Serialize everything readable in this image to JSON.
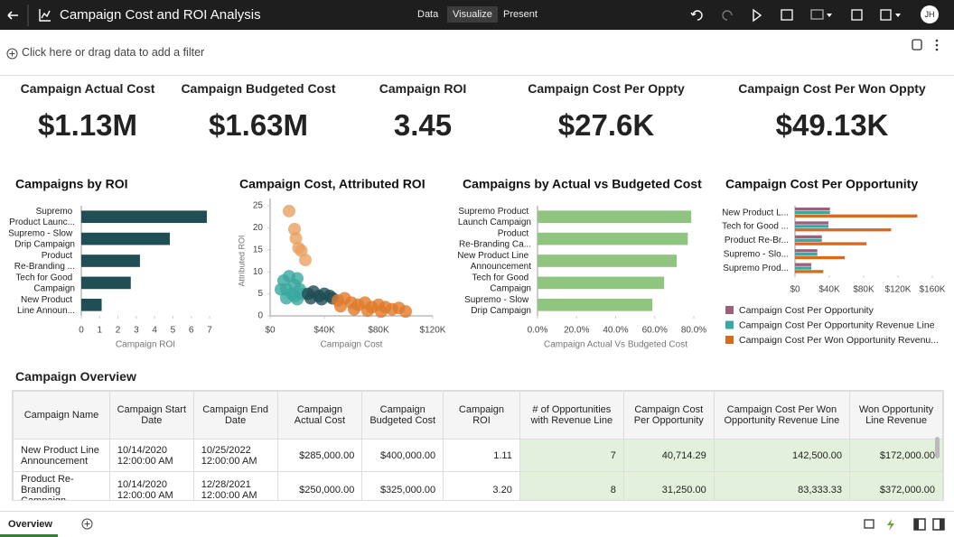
{
  "header": {
    "title": "Campaign Cost and ROI Analysis",
    "tabs": [
      "Data",
      "Visualize",
      "Present"
    ],
    "avatar": "JH"
  },
  "filter_bar": {
    "placeholder": "Click here or drag data to add a filter"
  },
  "kpis": [
    {
      "title": "Campaign Actual Cost",
      "value": "$1.13M"
    },
    {
      "title": "Campaign Budgeted Cost",
      "value": "$1.63M"
    },
    {
      "title": "Campaign ROI",
      "value": "3.45"
    },
    {
      "title": "Campaign Cost Per Oppty",
      "value": "$27.6K"
    },
    {
      "title": "Campaign Cost Per Won Oppty",
      "value": "$49.13K"
    }
  ],
  "chart_data": [
    {
      "type": "bar",
      "orientation": "horizontal",
      "title": "Campaigns by ROI",
      "categories": [
        "Supremo Product Launc...",
        "Supremo - Slow Drip Campaign",
        "Product Re-Branding ...",
        "Tech for Good Campaign",
        "New Product Line Announ..."
      ],
      "values": [
        6.85,
        4.83,
        3.2,
        2.7,
        1.11
      ],
      "color": "#1f4e55",
      "xlabel": "Campaign ROI",
      "xlim": [
        0,
        7
      ],
      "xticks": [
        0,
        1,
        2,
        3,
        4,
        5,
        6,
        7
      ],
      "grid": false
    },
    {
      "type": "scatter",
      "title": "Campaign Cost, Attributed ROI",
      "xlabel": "Campaign Cost",
      "ylabel": "Attributed ROI",
      "xlim": [
        0,
        120000
      ],
      "xticks": [
        {
          "value": 0,
          "label": "$0"
        },
        {
          "value": 40000,
          "label": "$40K"
        },
        {
          "value": 80000,
          "label": "$80K"
        },
        {
          "value": 120000,
          "label": "$120K"
        }
      ],
      "ylim": [
        0,
        25
      ],
      "yticks": [
        0,
        5,
        10,
        15,
        20,
        25
      ],
      "grid": false,
      "series": [
        {
          "color": "#e8a060",
          "x": [
            14000,
            18000,
            19000,
            21000,
            23000,
            26000
          ],
          "values": [
            23.8,
            19.7,
            17.6,
            15.4,
            14.8,
            12.7
          ]
        },
        {
          "color": "#3aa8a0",
          "x": [
            8000,
            10000,
            12000,
            12000,
            14000,
            16000,
            18000,
            18000,
            20000,
            20000,
            22000,
            24000
          ],
          "values": [
            6,
            8,
            6,
            4,
            9,
            5,
            7,
            4.5,
            8.5,
            3.8,
            6,
            5
          ]
        },
        {
          "color": "#1f4e55",
          "x": [
            28000,
            30000,
            32000,
            36000,
            38000,
            40000,
            44000,
            46000
          ],
          "values": [
            5,
            4,
            5.5,
            4.5,
            3.8,
            5,
            4.5,
            4
          ]
        },
        {
          "color": "#e07b2a",
          "x": [
            50000,
            52000,
            55000,
            60000,
            62000,
            65000,
            70000,
            72000,
            75000,
            80000,
            82000,
            85000,
            90000,
            95000,
            100000
          ],
          "values": [
            3.5,
            2.2,
            4,
            3,
            1.5,
            2.5,
            3,
            1.2,
            2,
            2.5,
            1,
            2,
            1.5,
            1.8,
            1
          ]
        }
      ]
    },
    {
      "type": "bar",
      "orientation": "horizontal",
      "title": "Campaigns by Actual vs Budgeted Cost",
      "categories": [
        "Supremo Product Launch Campaign",
        "Product Re-Branding Ca...",
        "New Product Line Announcement",
        "Tech for Good Campaign",
        "Supremo - Slow Drip Campaign"
      ],
      "values": [
        78.7,
        76.92,
        71.25,
        64.8,
        58.8
      ],
      "color": "#8fc57f",
      "xlabel": "Campaign Actual Vs Budgeted Cost",
      "xlim": [
        0,
        80
      ],
      "xticks": [
        {
          "value": 0,
          "label": "0.0%"
        },
        {
          "value": 20,
          "label": "20.0%"
        },
        {
          "value": 40,
          "label": "40.0%"
        },
        {
          "value": 60,
          "label": "60.0%"
        },
        {
          "value": 80,
          "label": "80.0%"
        }
      ],
      "grid": false
    },
    {
      "type": "bar",
      "orientation": "horizontal",
      "title": "Campaign Cost Per Opportunity",
      "categories": [
        "New Product L...",
        "Tech for Good ...",
        "Product Re-Br...",
        "Supremo - Slo...",
        "Supremo Prod..."
      ],
      "xlim": [
        0,
        160000
      ],
      "xticks": [
        {
          "value": 0,
          "label": "$0"
        },
        {
          "value": 40000,
          "label": "$40K"
        },
        {
          "value": 80000,
          "label": "$80K"
        },
        {
          "value": 120000,
          "label": "$120K"
        },
        {
          "value": 160000,
          "label": "$160K"
        }
      ],
      "grid": false,
      "legend": "bottom",
      "series": [
        {
          "name": "Campaign Cost Per Opportunity",
          "color": "#9e5f7a",
          "values": [
            40714.29,
            39000,
            31250,
            26000,
            19000
          ]
        },
        {
          "name": "Campaign Cost Per Opportunity Revenue Line",
          "color": "#3aa8a0",
          "values": [
            40714.29,
            39000,
            31250,
            26000,
            19000
          ]
        },
        {
          "name": "Campaign Cost Per Won Opportunity Revenu...",
          "color": "#d9691f",
          "values": [
            142500,
            112000,
            83333.33,
            58000,
            33000
          ]
        }
      ]
    }
  ],
  "table": {
    "title": "Campaign Overview",
    "columns": [
      "Campaign Name",
      "Campaign Start Date",
      "Campaign End Date",
      "Campaign Actual Cost",
      "Campaign Budgeted Cost",
      "Campaign ROI",
      "# of Opportunities with Revenue Line",
      "Campaign Cost Per Opportunity",
      "Campaign Cost Per Won Opportunity Revenue Line",
      "Won Opportunity Line Revenue"
    ],
    "rows": [
      [
        "New Product Line Announcement",
        "10/14/2020 12:00:00 AM",
        "10/25/2022 12:00:00 AM",
        "$285,000.00",
        "$400,000.00",
        "1.11",
        "7",
        "40,714.29",
        "142,500.00",
        "$172,000.00"
      ],
      [
        "Product Re-Branding Campaign",
        "10/14/2020 12:00:00 AM",
        "12/28/2021 12:00:00 AM",
        "$250,000.00",
        "$325,000.00",
        "3.20",
        "8",
        "31,250.00",
        "83,333.33",
        "$372,000.00"
      ]
    ]
  },
  "footer": {
    "tabs": [
      "Overview"
    ]
  }
}
